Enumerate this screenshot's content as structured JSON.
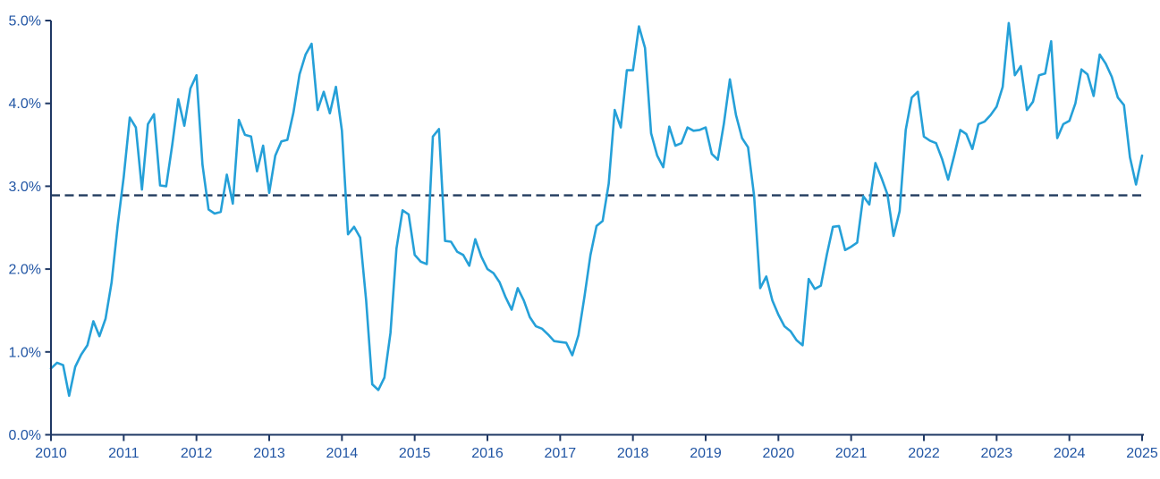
{
  "chart_data": {
    "type": "line",
    "title": "",
    "grid": false,
    "legend": "none",
    "x_start_year": 2010,
    "x_end_year": 2025,
    "frequency": "monthly",
    "x_tick_labels": [
      "2010",
      "2011",
      "2012",
      "2013",
      "2014",
      "2015",
      "2016",
      "2017",
      "2018",
      "2019",
      "2020",
      "2021",
      "2022",
      "2023",
      "2024",
      "2025"
    ],
    "y_tick_labels": [
      "0.0%",
      "1.0%",
      "2.0%",
      "3.0%",
      "4.0%",
      "5.0%"
    ],
    "ylim": [
      0,
      5
    ],
    "reference_line": {
      "value_pct": 2.89,
      "style": "dashed",
      "color": "#203A5E"
    },
    "series": [
      {
        "name": "monthly-rate-pct",
        "color": "#25A0D8",
        "start": "2010-01",
        "values": [
          0.8,
          0.87,
          0.84,
          0.47,
          0.82,
          0.97,
          1.08,
          1.37,
          1.19,
          1.4,
          1.84,
          2.53,
          3.11,
          3.83,
          3.71,
          2.96,
          3.75,
          3.87,
          3.01,
          3.0,
          3.5,
          4.05,
          3.73,
          4.18,
          4.34,
          3.26,
          2.72,
          2.67,
          2.69,
          3.14,
          2.79,
          3.8,
          3.62,
          3.6,
          3.18,
          3.49,
          2.92,
          3.37,
          3.54,
          3.56,
          3.89,
          4.35,
          4.59,
          4.72,
          3.92,
          4.14,
          3.88,
          4.2,
          3.67,
          2.42,
          2.51,
          2.38,
          1.62,
          0.61,
          0.54,
          0.69,
          1.23,
          2.25,
          2.71,
          2.66,
          2.17,
          2.09,
          2.06,
          3.6,
          3.69,
          2.34,
          2.33,
          2.21,
          2.17,
          2.04,
          2.36,
          2.15,
          2.0,
          1.95,
          1.84,
          1.66,
          1.51,
          1.77,
          1.62,
          1.42,
          1.31,
          1.28,
          1.21,
          1.13,
          1.12,
          1.11,
          0.96,
          1.2,
          1.66,
          2.17,
          2.52,
          2.58,
          3.03,
          3.92,
          3.71,
          4.4,
          4.4,
          4.93,
          4.67,
          3.64,
          3.37,
          3.23,
          3.72,
          3.49,
          3.52,
          3.71,
          3.67,
          3.68,
          3.71,
          3.39,
          3.32,
          3.75,
          4.29,
          3.86,
          3.58,
          3.47,
          2.88,
          1.77,
          1.91,
          1.62,
          1.45,
          1.31,
          1.25,
          1.14,
          1.08,
          1.88,
          1.76,
          1.8,
          2.18,
          2.51,
          2.52,
          2.23,
          2.27,
          2.32,
          2.88,
          2.78,
          3.28,
          3.1,
          2.9,
          2.4,
          2.7,
          3.68,
          4.07,
          4.14,
          3.6,
          3.55,
          3.52,
          3.33,
          3.08,
          3.37,
          3.68,
          3.63,
          3.45,
          3.75,
          3.78,
          3.86,
          3.96,
          4.2,
          4.97,
          4.34,
          4.45,
          3.92,
          4.02,
          4.34,
          4.36,
          4.75,
          3.58,
          3.75,
          3.79,
          4.0,
          4.41,
          4.35,
          4.09,
          4.59,
          4.48,
          4.32,
          4.07,
          3.98,
          3.35,
          3.02,
          3.37
        ]
      }
    ]
  },
  "colors": {
    "background": "#FFFFFF",
    "axis": "#1F3864",
    "tick_label": "#2155A4",
    "series_line": "#25A0D8",
    "reference_dash": "#203A5E"
  }
}
